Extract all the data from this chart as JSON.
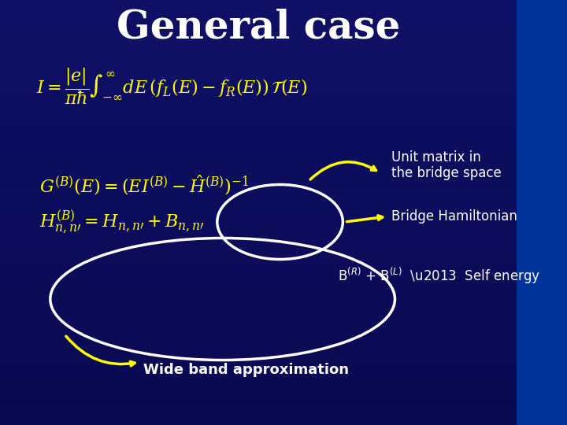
{
  "title": "General case",
  "title_color": "white",
  "title_fontsize": 36,
  "bg_color_top": "#00008B",
  "bg_color_bottom": "#003080",
  "formula1": "$I = \\dfrac{|e|}{\\pi\\hbar} \\int_{-\\infty}^{\\infty} dE\\,(f_L(E) - f_R(E))\\,\\mathcal{T}(E)$",
  "formula2": "$G^{(B)}(E) = \\left(E\\mathit{I}^{(B)} - \\hat{H}^{(B)}\\right)^{-1}$",
  "formula3": "$H^{(B)}_{n,n'} = H_{n,n'} + B_{n,n'}$",
  "annotation1": "Unit matrix in\nthe bridge space",
  "annotation2": "Bridge Hamiltonian",
  "annotation3": "B$^{(R)}$ + B$^{(L)}$  –  Self energy",
  "annotation4": "Wide band approximation",
  "formula_color": "#FFFF00",
  "annotation_color": "white",
  "arrow_color": "#FFFF00",
  "ellipse_color": "white",
  "small_ellipse_color": "white"
}
